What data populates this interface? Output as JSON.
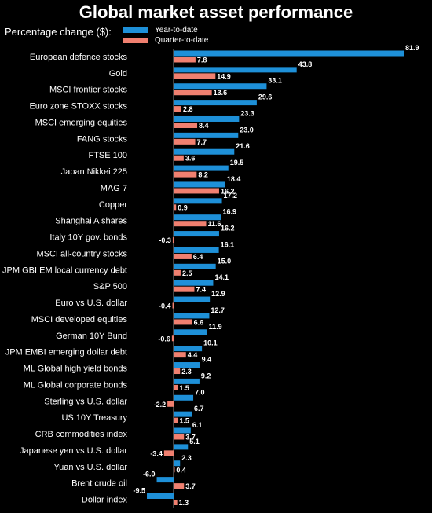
{
  "chart_data": {
    "type": "bar",
    "orientation": "horizontal",
    "title": "Global market asset performance",
    "subtitle": "Percentage change ($):",
    "legend_position": "top-left",
    "grid": false,
    "colors": {
      "ytd": "#1e90d8",
      "qtd": "#f08070",
      "background": "#000000"
    },
    "categories": [
      "European defence stocks",
      "Gold",
      "MSCI frontier stocks",
      "Euro zone STOXX stocks",
      "MSCI emerging equities",
      "FANG stocks",
      "FTSE 100",
      "Japan Nikkei 225",
      "MAG 7",
      "Copper",
      "Shanghai A shares",
      "Italy 10Y gov. bonds",
      "MSCI all-country stocks",
      "JPM GBI EM local currency debt",
      "S&P 500",
      "Euro vs U.S. dollar",
      "MSCI developed equities",
      "German 10Y Bund",
      "JPM EMBI emerging dollar debt",
      "ML Global high yield bonds",
      "ML Global corporate bonds",
      "Sterling vs U.S. dollar",
      "US 10Y Treasury",
      "CRB commodities index",
      "Japanese yen vs U.S. dollar",
      "Yuan vs U.S. dollar",
      "Brent crude oil",
      "Dollar index"
    ],
    "series": [
      {
        "name": "Year-to-date",
        "values": [
          81.9,
          43.8,
          33.1,
          29.6,
          23.3,
          23.0,
          21.6,
          19.5,
          18.4,
          17.2,
          16.9,
          16.2,
          16.1,
          15.0,
          14.1,
          12.9,
          12.7,
          11.9,
          10.1,
          9.4,
          9.2,
          7.0,
          6.7,
          6.1,
          5.1,
          2.3,
          -6.0,
          -9.5
        ],
        "labels": [
          "81.9",
          "43.8",
          "33.1",
          "29.6",
          "23.3",
          "23.0",
          "21.6",
          "19.5",
          "18.4",
          "17.2",
          "16.9",
          "16.2",
          "16.1",
          "15.0",
          "14.1",
          "12.9",
          "12.7",
          "11.9",
          "10.1",
          "9.4",
          "9.2",
          "7.0",
          "6.7",
          "6.1",
          "5.1",
          "2.3",
          "-6.0",
          "-9.5"
        ]
      },
      {
        "name": "Quarter-to-date",
        "values": [
          7.8,
          14.9,
          13.6,
          2.8,
          8.4,
          7.7,
          3.6,
          8.2,
          16.2,
          0.9,
          11.6,
          -0.3,
          6.4,
          2.5,
          7.4,
          -0.4,
          6.6,
          -0.6,
          4.4,
          2.3,
          1.5,
          -2.2,
          1.5,
          3.7,
          -3.4,
          0.4,
          3.7,
          1.3
        ],
        "labels": [
          "7.8",
          "14.9",
          "13.6",
          "2.8",
          "8.4",
          "7.7",
          "3.6",
          "8.2",
          "16.2",
          "0.9",
          "11.6",
          "-0.3",
          "6.4",
          "2.5",
          "7.4",
          "-0.4",
          "6.6",
          "-0.6",
          "4.4",
          "2.3",
          "1.5",
          "-2.2",
          "1.5",
          "3.7",
          "-3.4",
          "0.4",
          "3.7",
          "1.3"
        ]
      }
    ],
    "xlim": [
      -10,
      82
    ]
  }
}
